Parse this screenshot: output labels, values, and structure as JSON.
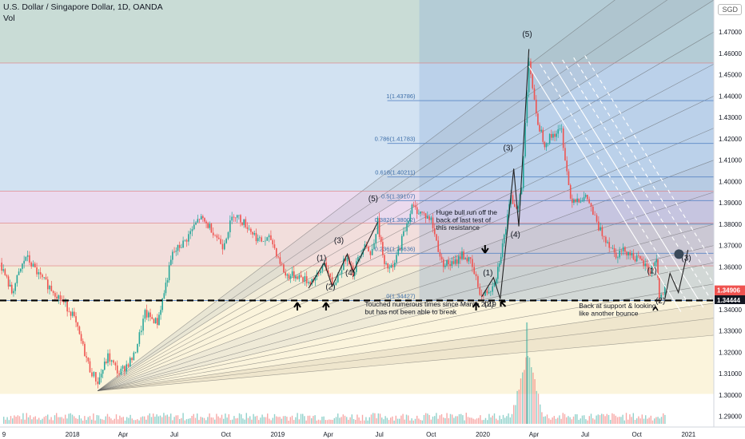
{
  "header": {
    "title": "U.S. Dollar / Singapore Dollar, 1D, OANDA",
    "sub": "Vol"
  },
  "currency_badge": "SGD",
  "price_tags": [
    {
      "value": "1.34906",
      "color": "#ef5350"
    },
    {
      "value": "21:06:14",
      "color": "#ef5350"
    },
    {
      "value": "1.34444",
      "color": "#131722"
    }
  ],
  "colors": {
    "up": "#26a69a",
    "down": "#ef5350",
    "fib_line": "#5b87c5",
    "fan": "#5a5a5a",
    "channel": "#ffffff"
  },
  "fib_levels": [
    {
      "label": "1(1.43786)",
      "value": 1.43786
    },
    {
      "label": "0.786(1.41783)",
      "value": 1.41783
    },
    {
      "label": "0.618(1.40211)",
      "value": 1.40211
    },
    {
      "label": "0.5(1.39107)",
      "value": 1.39107
    },
    {
      "label": "0.382(1.38002)",
      "value": 1.38002
    },
    {
      "label": "0.236(1.36636)",
      "value": 1.36636
    },
    {
      "label": "0(1.34427)",
      "value": 1.34427
    }
  ],
  "annotations": {
    "bull_run": [
      "Huge bull run off the",
      "back of last test of",
      "this resistance"
    ],
    "touched": [
      "Touched numerous times since March 2019",
      "but has not been able to break"
    ],
    "back_support": [
      "Back at support & looking",
      "like another bounce"
    ]
  },
  "wave_labels": [
    {
      "text": "(5)",
      "x": "2019-06-20",
      "y": 1.3908
    },
    {
      "text": "(3)",
      "x": "2019-04-20",
      "y": 1.3712
    },
    {
      "text": "(1)",
      "x": "2019-03-20",
      "y": 1.363
    },
    {
      "text": "(4)",
      "x": "2019-05-10",
      "y": 1.356
    },
    {
      "text": "(2)",
      "x": "2019-04-05",
      "y": 1.3495
    },
    {
      "text": "(5)",
      "x": "2020-03-20",
      "y": 1.4678
    },
    {
      "text": "(3)",
      "x": "2020-02-15",
      "y": 1.4145
    },
    {
      "text": "(4)",
      "x": "2020-02-28",
      "y": 1.374
    },
    {
      "text": "(1)",
      "x": "2020-01-10",
      "y": 1.356
    },
    {
      "text": "(2)",
      "x": "2020-01-12",
      "y": 1.3415
    },
    {
      "text": "(1)",
      "x": "2020-10-28",
      "y": 1.357
    },
    {
      "text": "(2)",
      "x": "2020-11-12",
      "y": 1.343
    },
    {
      "text": "(3)",
      "x": "2020-12-28",
      "y": 1.363
    }
  ],
  "chart_data": {
    "type": "candlestick",
    "title": "U.S. Dollar / Singapore Dollar, 1D, OANDA",
    "ylim": [
      1.285,
      1.485
    ],
    "y_ticks": [
      1.29,
      1.3,
      1.31,
      1.32,
      1.33,
      1.34,
      1.35,
      1.36,
      1.37,
      1.38,
      1.39,
      1.4,
      1.41,
      1.42,
      1.43,
      1.44,
      1.45,
      1.46,
      1.47
    ],
    "x_ticks": [
      "9",
      "2018",
      "Apr",
      "Jul",
      "Oct",
      "2019",
      "Apr",
      "Jul",
      "Oct",
      "2020",
      "Apr",
      "Jul",
      "Oct",
      "2021"
    ],
    "x_tick_dates": [
      "2017-09-01",
      "2018-01-01",
      "2018-04-01",
      "2018-07-01",
      "2018-10-01",
      "2019-01-01",
      "2019-04-01",
      "2019-07-01",
      "2019-10-01",
      "2020-01-01",
      "2020-04-01",
      "2020-07-01",
      "2020-10-01",
      "2021-01-01"
    ],
    "x_range": [
      "2017-08-25",
      "2021-02-15"
    ],
    "price_path": [
      [
        "2017-08-25",
        1.362
      ],
      [
        "2017-09-15",
        1.348
      ],
      [
        "2017-10-10",
        1.365
      ],
      [
        "2017-11-05",
        1.355
      ],
      [
        "2017-12-01",
        1.348
      ],
      [
        "2018-01-01",
        1.338
      ],
      [
        "2018-02-01",
        1.312
      ],
      [
        "2018-02-15",
        1.306
      ],
      [
        "2018-03-05",
        1.318
      ],
      [
        "2018-03-25",
        1.31
      ],
      [
        "2018-04-20",
        1.318
      ],
      [
        "2018-05-10",
        1.338
      ],
      [
        "2018-06-01",
        1.334
      ],
      [
        "2018-06-28",
        1.366
      ],
      [
        "2018-07-20",
        1.372
      ],
      [
        "2018-08-15",
        1.383
      ],
      [
        "2018-09-05",
        1.378
      ],
      [
        "2018-09-25",
        1.37
      ],
      [
        "2018-10-15",
        1.385
      ],
      [
        "2018-11-05",
        1.38
      ],
      [
        "2018-11-30",
        1.372
      ],
      [
        "2018-12-20",
        1.373
      ],
      [
        "2019-01-15",
        1.356
      ],
      [
        "2019-02-05",
        1.356
      ],
      [
        "2019-02-25",
        1.353
      ],
      [
        "2019-03-15",
        1.356
      ],
      [
        "2019-03-25",
        1.363
      ],
      [
        "2019-04-08",
        1.35
      ],
      [
        "2019-04-25",
        1.36
      ],
      [
        "2019-05-05",
        1.366
      ],
      [
        "2019-05-15",
        1.357
      ],
      [
        "2019-06-05",
        1.372
      ],
      [
        "2019-06-15",
        1.365
      ],
      [
        "2019-06-28",
        1.381
      ],
      [
        "2019-07-10",
        1.36
      ],
      [
        "2019-07-25",
        1.359
      ],
      [
        "2019-08-10",
        1.373
      ],
      [
        "2019-08-28",
        1.388
      ],
      [
        "2019-09-15",
        1.385
      ],
      [
        "2019-10-01",
        1.382
      ],
      [
        "2019-10-20",
        1.362
      ],
      [
        "2019-11-10",
        1.361
      ],
      [
        "2019-11-25",
        1.366
      ],
      [
        "2019-12-10",
        1.362
      ],
      [
        "2019-12-30",
        1.346
      ],
      [
        "2020-01-15",
        1.35
      ],
      [
        "2020-01-25",
        1.356
      ],
      [
        "2020-02-05",
        1.37
      ],
      [
        "2020-02-20",
        1.392
      ],
      [
        "2020-03-01",
        1.388
      ],
      [
        "2020-03-10",
        1.396
      ],
      [
        "2020-03-23",
        1.458
      ],
      [
        "2020-04-05",
        1.43
      ],
      [
        "2020-04-20",
        1.418
      ],
      [
        "2020-05-05",
        1.422
      ],
      [
        "2020-05-20",
        1.424
      ],
      [
        "2020-06-05",
        1.392
      ],
      [
        "2020-06-20",
        1.392
      ],
      [
        "2020-07-05",
        1.392
      ],
      [
        "2020-07-25",
        1.378
      ],
      [
        "2020-08-10",
        1.372
      ],
      [
        "2020-08-25",
        1.366
      ],
      [
        "2020-09-10",
        1.368
      ],
      [
        "2020-09-25",
        1.365
      ],
      [
        "2020-10-10",
        1.362
      ],
      [
        "2020-10-25",
        1.358
      ],
      [
        "2020-11-05",
        1.364
      ],
      [
        "2020-11-10",
        1.345
      ],
      [
        "2020-11-20",
        1.349
      ]
    ],
    "projection": [
      [
        "2020-11-20",
        1.345
      ],
      [
        "2020-11-29",
        1.357
      ],
      [
        "2020-12-14",
        1.348
      ],
      [
        "2020-12-31",
        1.368
      ]
    ],
    "support_level": 1.34427,
    "fan_origin": [
      "2018-02-15",
      1.302
    ]
  }
}
